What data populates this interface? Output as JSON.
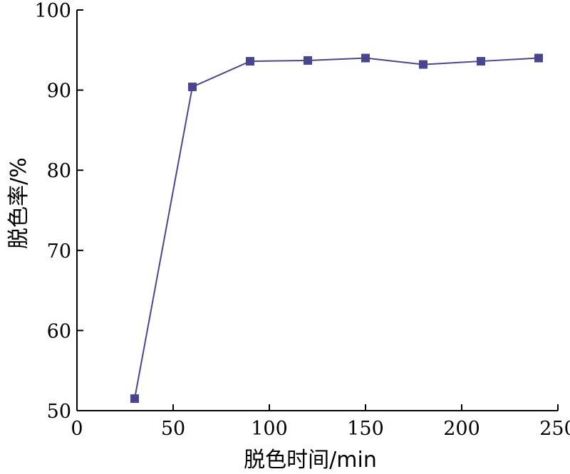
{
  "chart_data": {
    "type": "line",
    "title": "",
    "xlabel": "脱色时间/min",
    "ylabel": "脱色率/%",
    "xlim": [
      0,
      250
    ],
    "ylim": [
      50,
      100
    ],
    "x_ticks": [
      0,
      50,
      100,
      150,
      200,
      250
    ],
    "y_ticks": [
      50,
      60,
      70,
      80,
      90,
      100
    ],
    "grid": false,
    "legend": "none",
    "series": [
      {
        "color": "#4a4591",
        "marker": "square",
        "x": [
          30,
          60,
          90,
          120,
          150,
          180,
          210,
          240
        ],
        "y": [
          51.5,
          90.4,
          93.6,
          93.7,
          94.0,
          93.2,
          93.6,
          94.0
        ]
      }
    ]
  }
}
